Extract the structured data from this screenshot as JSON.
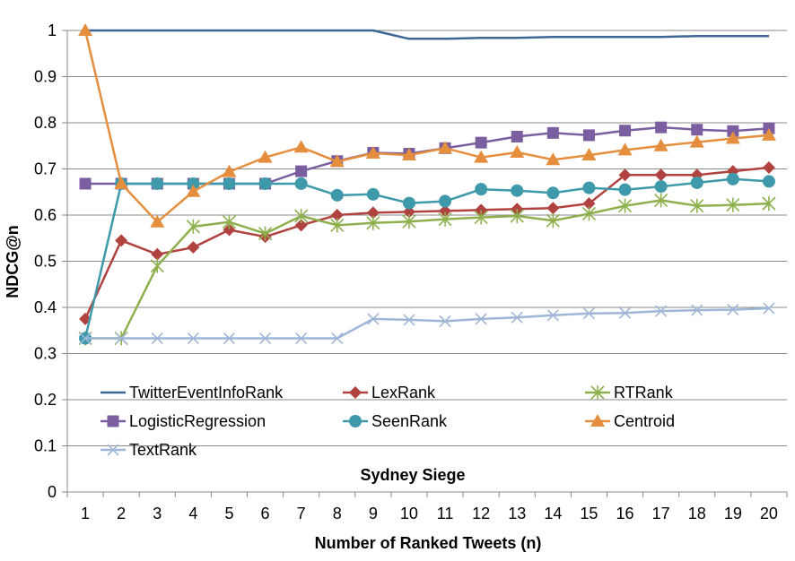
{
  "chart_data": {
    "type": "line",
    "xlabel": "Number of Ranked Tweets (n)",
    "ylabel": "NDCG@n",
    "annotation": "Sydney Siege",
    "x": [
      1,
      2,
      3,
      4,
      5,
      6,
      7,
      8,
      9,
      10,
      11,
      12,
      13,
      14,
      15,
      16,
      17,
      18,
      19,
      20
    ],
    "ylim": [
      0,
      1
    ],
    "yticks": [
      "0",
      "0.1",
      "0.2",
      "0.3",
      "0.4",
      "0.5",
      "0.6",
      "0.7",
      "0.8",
      "0.9",
      "1"
    ],
    "xticks": [
      "1",
      "2",
      "3",
      "4",
      "5",
      "6",
      "7",
      "8",
      "9",
      "10",
      "11",
      "12",
      "13",
      "14",
      "15",
      "16",
      "17",
      "18",
      "19",
      "20"
    ],
    "grid": true,
    "legend_position": "bottom-left inside plot, 3 columns",
    "series": [
      {
        "name": "TwitterEventInfoRank",
        "color": "#3d6696",
        "marker": "none",
        "values": [
          1,
          1,
          1,
          1,
          1,
          1,
          1,
          1,
          1,
          0.982,
          0.982,
          0.984,
          0.984,
          0.986,
          0.986,
          0.986,
          0.986,
          0.988,
          0.988,
          0.988
        ]
      },
      {
        "name": "LexRank",
        "color": "#b04340",
        "marker": "diamond",
        "values": [
          0.375,
          0.545,
          0.515,
          0.53,
          0.568,
          0.553,
          0.578,
          0.6,
          0.605,
          0.607,
          0.609,
          0.611,
          0.613,
          0.615,
          0.625,
          0.687,
          0.687,
          0.687,
          0.695,
          0.703
        ]
      },
      {
        "name": "RTRank",
        "color": "#8db04d",
        "marker": "star",
        "values": [
          0.333,
          0.333,
          0.49,
          0.575,
          0.585,
          0.56,
          0.598,
          0.578,
          0.583,
          0.586,
          0.591,
          0.595,
          0.598,
          0.588,
          0.603,
          0.62,
          0.632,
          0.62,
          0.622,
          0.625
        ]
      },
      {
        "name": "LogisticRegression",
        "color": "#7a5ea0",
        "marker": "square",
        "values": [
          0.668,
          0.668,
          0.668,
          0.668,
          0.668,
          0.668,
          0.695,
          0.717,
          0.735,
          0.733,
          0.745,
          0.757,
          0.77,
          0.778,
          0.773,
          0.783,
          0.79,
          0.785,
          0.782,
          0.788
        ]
      },
      {
        "name": "SeenRank",
        "color": "#3e9aaa",
        "marker": "circle",
        "values": [
          0.333,
          0.668,
          0.668,
          0.668,
          0.668,
          0.668,
          0.668,
          0.643,
          0.645,
          0.626,
          0.63,
          0.656,
          0.653,
          0.648,
          0.659,
          0.655,
          0.662,
          0.67,
          0.678,
          0.673
        ]
      },
      {
        "name": "Centroid",
        "color": "#e48e3e",
        "marker": "triangle",
        "values": [
          1.0,
          0.668,
          0.585,
          0.651,
          0.694,
          0.725,
          0.747,
          0.716,
          0.734,
          0.73,
          0.745,
          0.725,
          0.736,
          0.72,
          0.73,
          0.741,
          0.75,
          0.758,
          0.766,
          0.773
        ]
      },
      {
        "name": "TextRank",
        "color": "#9fb6d8",
        "marker": "x",
        "values": [
          0.333,
          0.333,
          0.333,
          0.333,
          0.333,
          0.333,
          0.333,
          0.333,
          0.375,
          0.373,
          0.37,
          0.375,
          0.378,
          0.383,
          0.387,
          0.388,
          0.392,
          0.394,
          0.395,
          0.398
        ]
      }
    ]
  }
}
